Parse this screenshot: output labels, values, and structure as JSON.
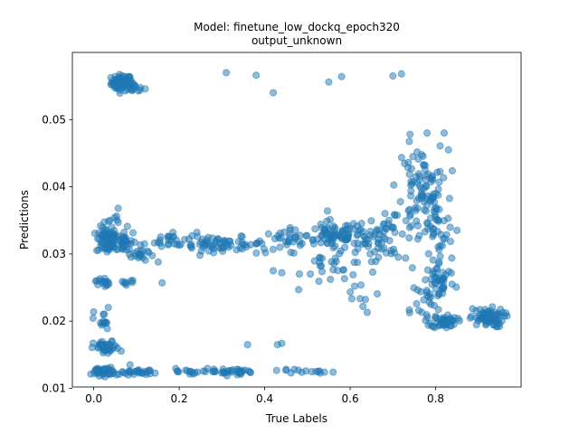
{
  "chart_data": {
    "type": "scatter",
    "title": "Model: finetune_low_dockq_epoch320",
    "subtitle": "output_unknown",
    "xlabel": "True Labels",
    "ylabel": "Predictions",
    "xlim": [
      -0.05,
      1.0
    ],
    "ylim": [
      0.0102,
      0.06
    ],
    "xticks": [
      0.0,
      0.2,
      0.4,
      0.6,
      0.8
    ],
    "xtick_labels": [
      "0.0",
      "0.2",
      "0.4",
      "0.6",
      "0.8"
    ],
    "yticks": [
      0.01,
      0.02,
      0.03,
      0.04,
      0.05
    ],
    "ytick_labels": [
      "0.01",
      "0.02",
      "0.03",
      "0.04",
      "0.05"
    ],
    "grid": false,
    "legend": "none",
    "marker_color": "#1f77b4",
    "marker_alpha": 0.5,
    "series": [
      {
        "clusters": [
          {
            "cx": 0.065,
            "cy": 0.0555,
            "sx": 0.012,
            "sy": 0.0006,
            "n": 70
          },
          {
            "cx": 0.095,
            "cy": 0.0548,
            "sx": 0.012,
            "sy": 0.0004,
            "n": 15
          },
          {
            "cx": 0.03,
            "cy": 0.032,
            "sx": 0.012,
            "sy": 0.001,
            "n": 60
          },
          {
            "cx": 0.07,
            "cy": 0.0318,
            "sx": 0.015,
            "sy": 0.0009,
            "n": 35
          },
          {
            "cx": 0.045,
            "cy": 0.0345,
            "sx": 0.015,
            "sy": 0.001,
            "n": 15
          },
          {
            "cx": 0.11,
            "cy": 0.03,
            "sx": 0.015,
            "sy": 0.0006,
            "n": 20
          },
          {
            "cx": 0.18,
            "cy": 0.032,
            "sx": 0.03,
            "sy": 0.0007,
            "n": 25
          },
          {
            "cx": 0.3,
            "cy": 0.0315,
            "sx": 0.05,
            "sy": 0.0005,
            "n": 60
          },
          {
            "cx": 0.45,
            "cy": 0.0318,
            "sx": 0.035,
            "sy": 0.0009,
            "n": 35
          },
          {
            "cx": 0.56,
            "cy": 0.0328,
            "sx": 0.03,
            "sy": 0.0011,
            "n": 65
          },
          {
            "cx": 0.64,
            "cy": 0.032,
            "sx": 0.03,
            "sy": 0.0012,
            "n": 40
          },
          {
            "cx": 0.57,
            "cy": 0.0285,
            "sx": 0.04,
            "sy": 0.0015,
            "n": 25
          },
          {
            "cx": 0.625,
            "cy": 0.025,
            "sx": 0.025,
            "sy": 0.0012,
            "n": 10
          },
          {
            "cx": 0.7,
            "cy": 0.033,
            "sx": 0.03,
            "sy": 0.002,
            "n": 35
          },
          {
            "cx": 0.76,
            "cy": 0.04,
            "sx": 0.025,
            "sy": 0.003,
            "n": 70
          },
          {
            "cx": 0.8,
            "cy": 0.034,
            "sx": 0.02,
            "sy": 0.005,
            "n": 55
          },
          {
            "cx": 0.81,
            "cy": 0.026,
            "sx": 0.018,
            "sy": 0.0015,
            "n": 45
          },
          {
            "cx": 0.82,
            "cy": 0.02,
            "sx": 0.015,
            "sy": 0.0005,
            "n": 45
          },
          {
            "cx": 0.76,
            "cy": 0.023,
            "sx": 0.02,
            "sy": 0.0015,
            "n": 15
          },
          {
            "cx": 0.92,
            "cy": 0.0205,
            "sx": 0.02,
            "sy": 0.0007,
            "n": 70
          },
          {
            "cx": 0.02,
            "cy": 0.0258,
            "sx": 0.008,
            "sy": 0.0004,
            "n": 15
          },
          {
            "cx": 0.08,
            "cy": 0.0258,
            "sx": 0.008,
            "sy": 0.0002,
            "n": 8
          },
          {
            "cx": 0.02,
            "cy": 0.02,
            "sx": 0.01,
            "sy": 0.001,
            "n": 15
          },
          {
            "cx": 0.03,
            "cy": 0.016,
            "sx": 0.015,
            "sy": 0.0005,
            "n": 40
          },
          {
            "cx": 0.02,
            "cy": 0.0125,
            "sx": 0.012,
            "sy": 0.0003,
            "n": 45
          },
          {
            "cx": 0.1,
            "cy": 0.0124,
            "sx": 0.03,
            "sy": 0.0002,
            "n": 30
          },
          {
            "cx": 0.22,
            "cy": 0.0125,
            "sx": 0.04,
            "sy": 0.0002,
            "n": 20
          },
          {
            "cx": 0.33,
            "cy": 0.0125,
            "sx": 0.04,
            "sy": 0.0002,
            "n": 30
          },
          {
            "cx": 0.46,
            "cy": 0.0125,
            "sx": 0.04,
            "sy": 0.0002,
            "n": 12
          }
        ],
        "points": [
          [
            0.31,
            0.057
          ],
          [
            0.38,
            0.0566
          ],
          [
            0.42,
            0.054
          ],
          [
            0.55,
            0.0556
          ],
          [
            0.58,
            0.0564
          ],
          [
            0.7,
            0.0565
          ],
          [
            0.72,
            0.0568
          ],
          [
            0.36,
            0.0165
          ],
          [
            0.43,
            0.0165
          ],
          [
            0.44,
            0.0167
          ],
          [
            0.16,
            0.0257
          ],
          [
            0.085,
            0.0135
          ],
          [
            0.52,
            0.0125
          ],
          [
            0.54,
            0.0124
          ],
          [
            0.56,
            0.0124
          ],
          [
            0.64,
            0.0213
          ],
          [
            0.63,
            0.0222
          ],
          [
            0.78,
            0.048
          ],
          [
            0.82,
            0.048
          ],
          [
            0.74,
            0.0478
          ],
          [
            0.83,
            0.0455
          ],
          [
            0.85,
            0.0335
          ],
          [
            0.44,
            0.0272
          ],
          [
            0.42,
            0.0275
          ]
        ]
      }
    ]
  }
}
